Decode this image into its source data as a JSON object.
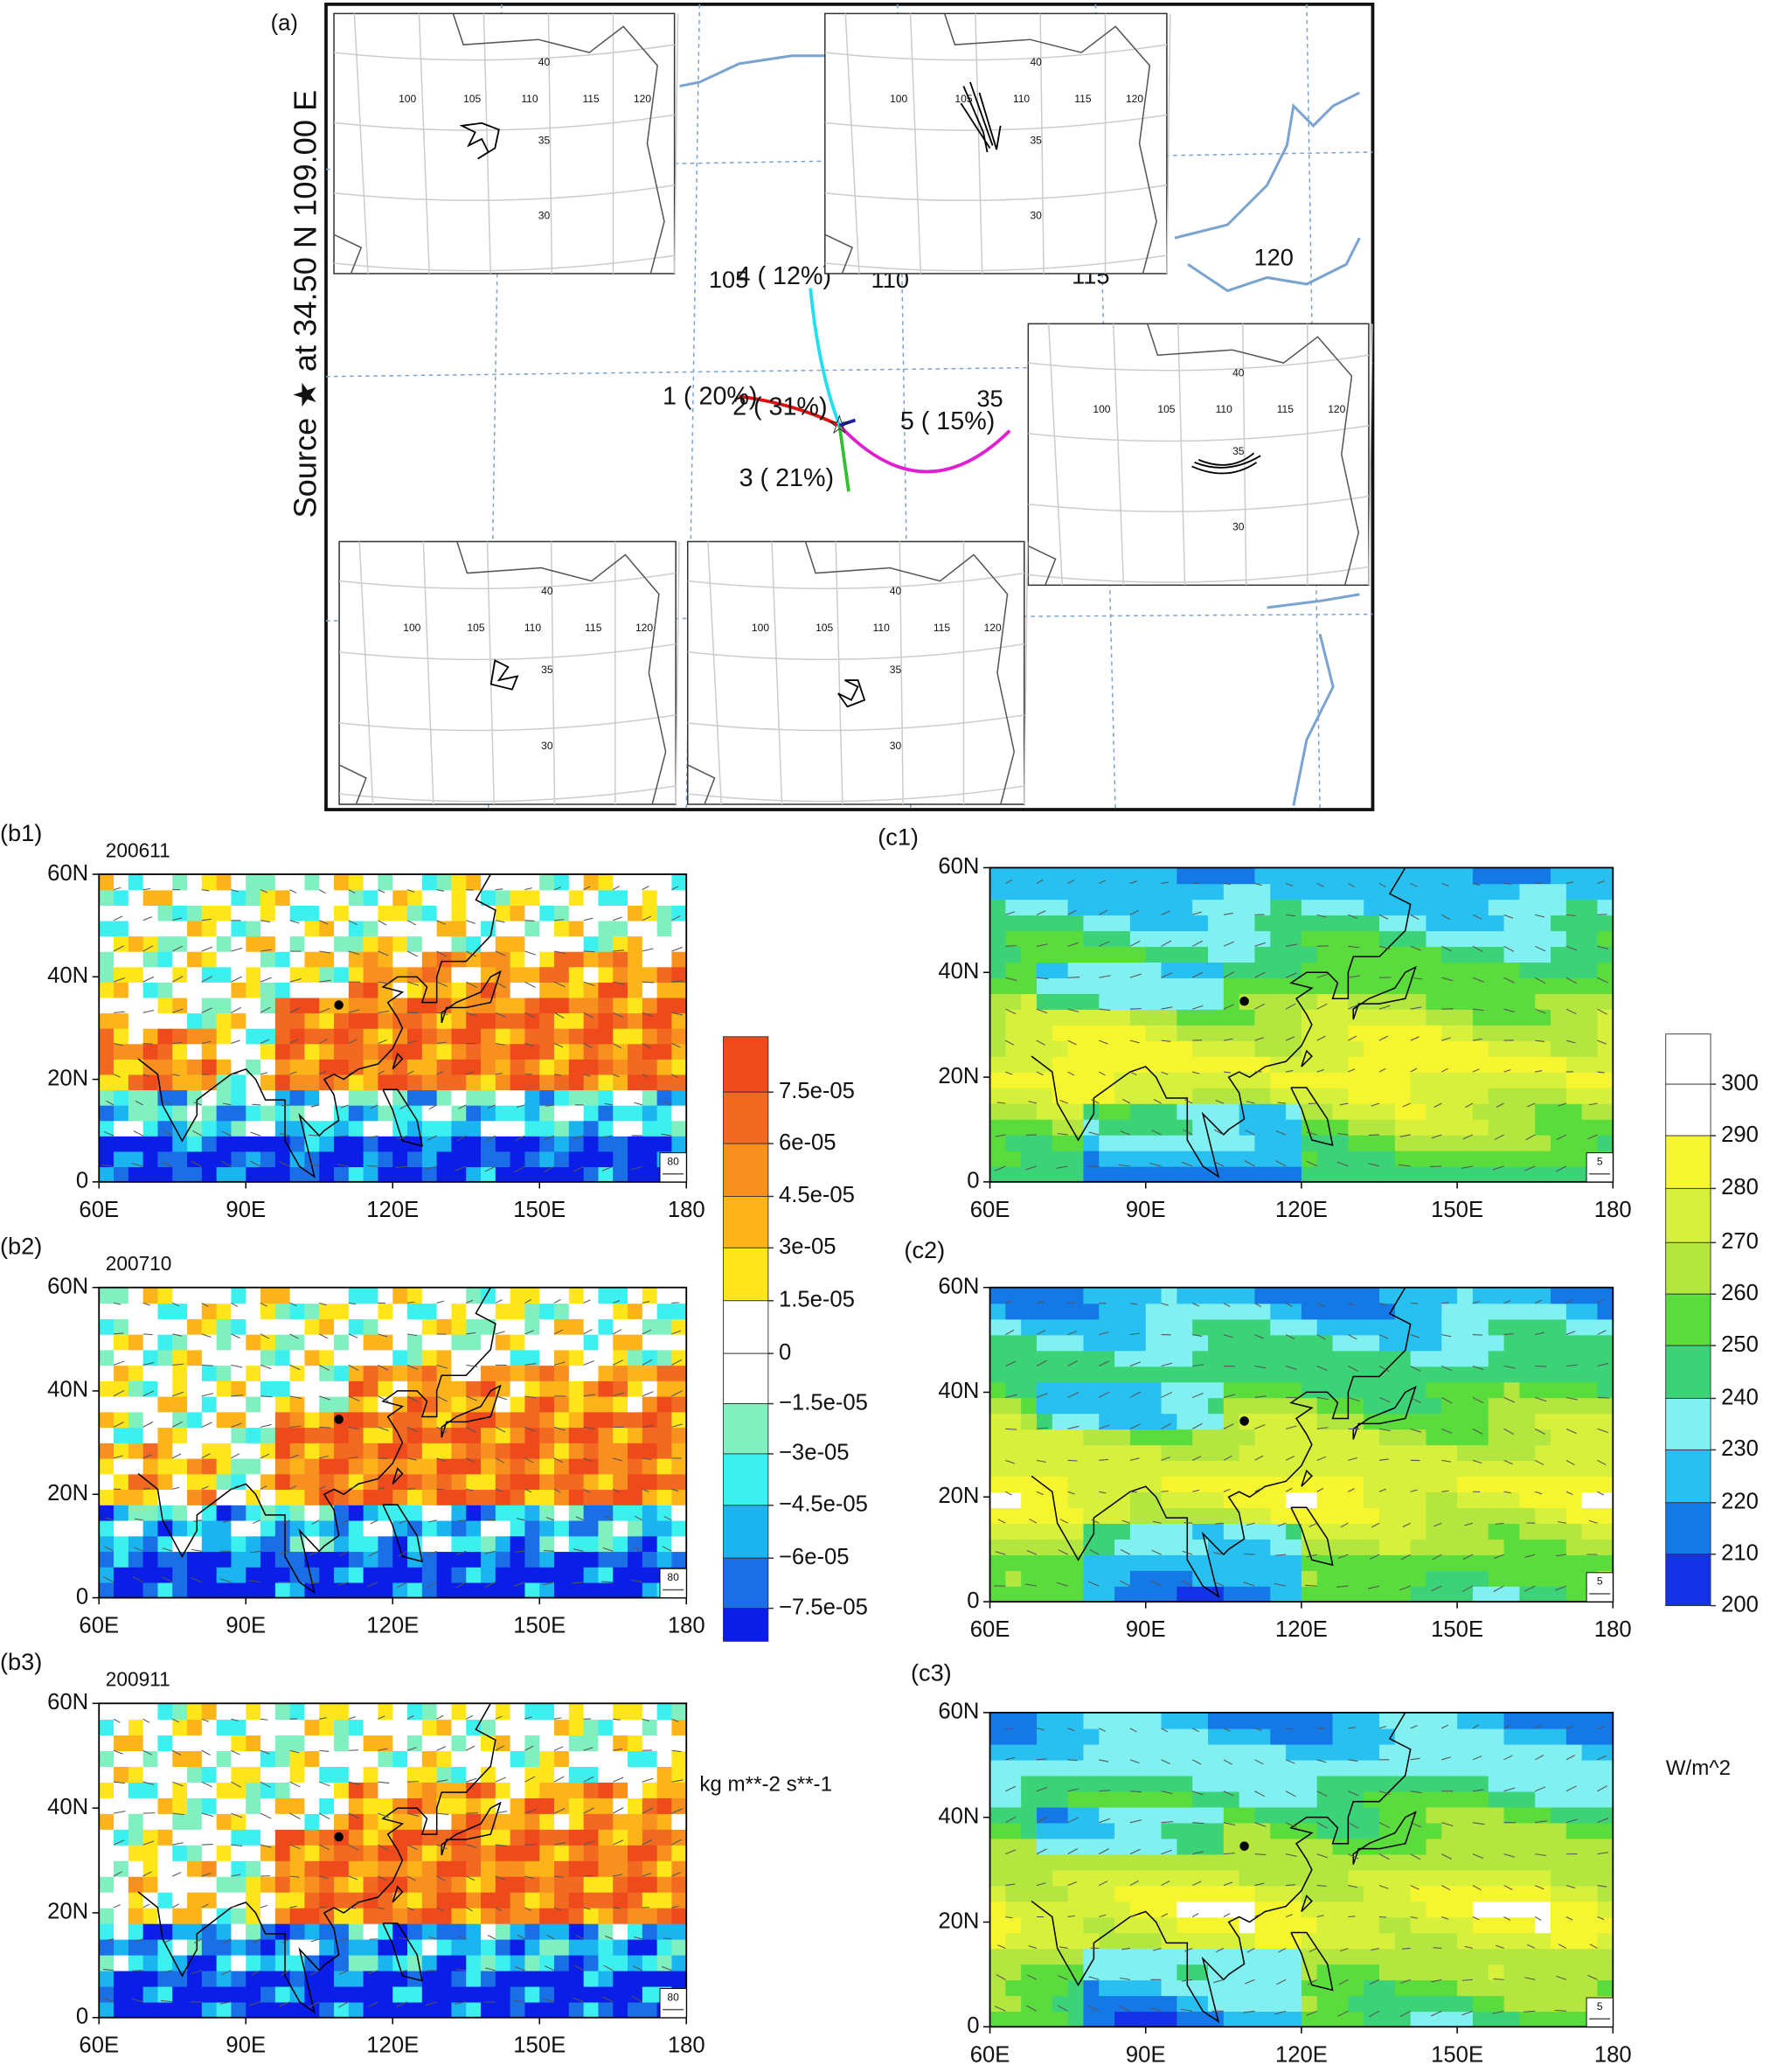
{
  "panel_a": {
    "label": "(a)",
    "source_label": "Source ★ at 34.50 N 109.00 E",
    "background_labels": [
      "105",
      "110",
      "115",
      "120",
      "35"
    ],
    "clusters": [
      "1 ( 20%)",
      "2 ( 31%)",
      "3 ( 21%)",
      "4 ( 12%)",
      "5 ( 15%)"
    ],
    "inset_lon_labels": [
      "100",
      "105",
      "110",
      "115",
      "120"
    ],
    "inset_lat_labels": [
      "40",
      "35",
      "30"
    ]
  },
  "panels_b": [
    {
      "label": "(b1)",
      "date": "200611"
    },
    {
      "label": "(b2)",
      "date": "200710"
    },
    {
      "label": "(b3)",
      "date": "200911"
    }
  ],
  "panels_c": [
    {
      "label": "(c1)"
    },
    {
      "label": "(c2)"
    },
    {
      "label": "(c3)"
    }
  ],
  "lat_labels": [
    "60N",
    "40N",
    "20N",
    "0"
  ],
  "lon_labels": [
    "60E",
    "90E",
    "120E",
    "150E",
    "180"
  ],
  "b_ref_vector": "80",
  "c_ref_vector": "5",
  "colorbar_b": {
    "labels": [
      "7.5e-05",
      "6e-05",
      "4.5e-05",
      "3e-05",
      "1.5e-05",
      "0",
      "−1.5e-05",
      "−3e-05",
      "−4.5e-05",
      "−6e-05",
      "−7.5e-05"
    ],
    "unit": "kg m**-2 s**-1"
  },
  "colorbar_c": {
    "labels": [
      "300",
      "290",
      "280",
      "270",
      "260",
      "250",
      "240",
      "230",
      "220",
      "210",
      "200"
    ],
    "unit": "W/m^2"
  }
}
